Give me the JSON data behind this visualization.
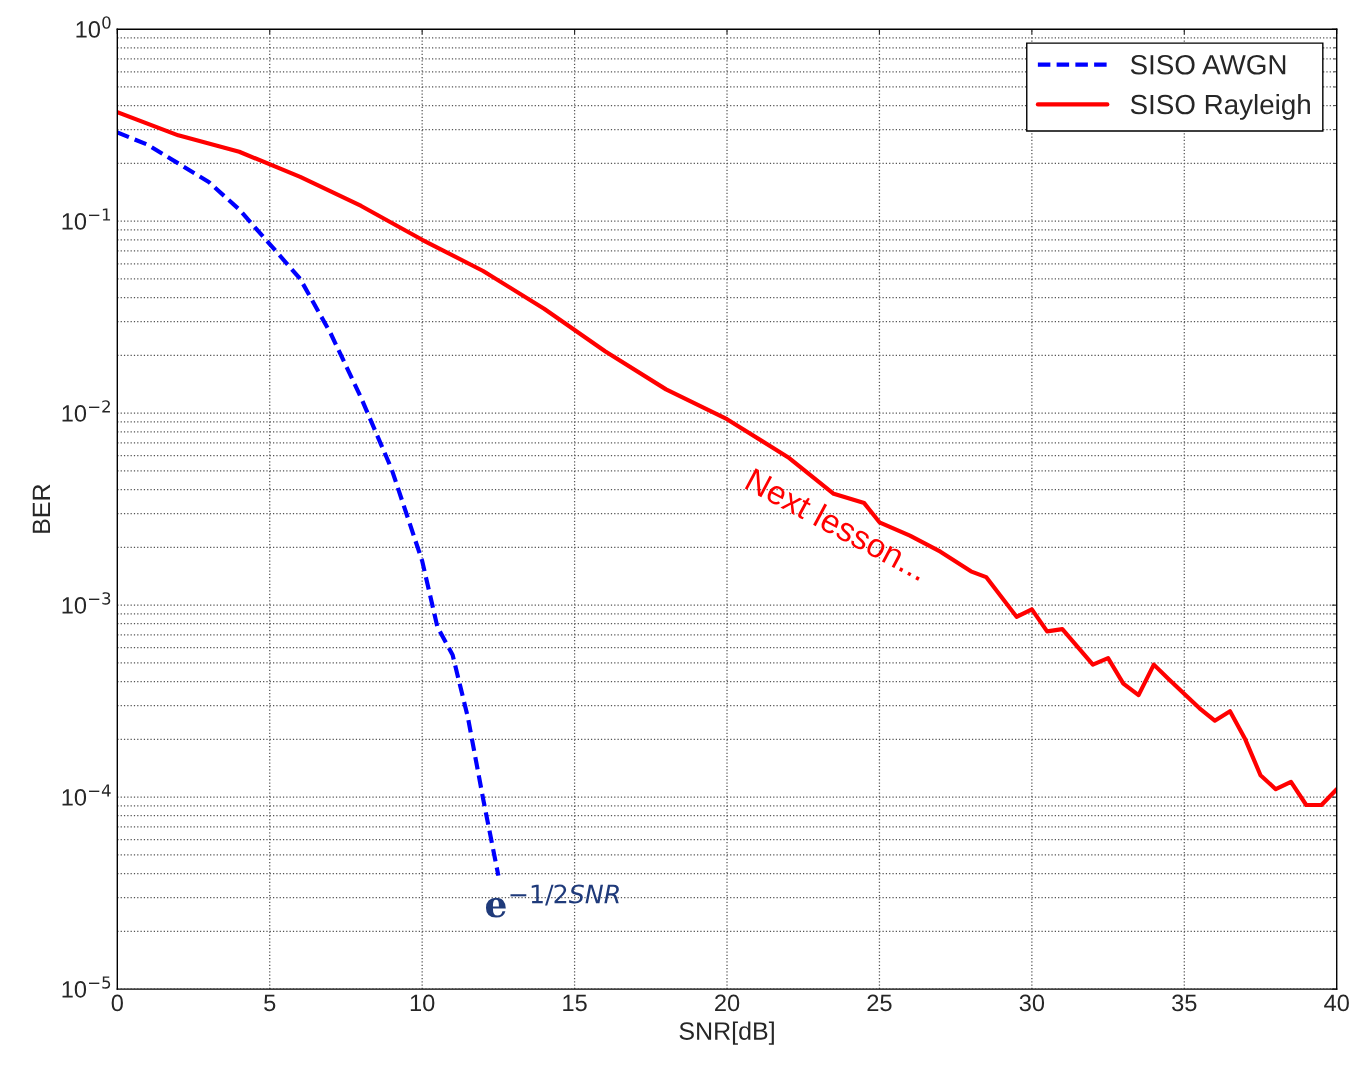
{
  "chart_data": {
    "type": "line",
    "xlabel": "SNR[dB]",
    "ylabel": "BER",
    "log": "y",
    "xlim": [
      0,
      40
    ],
    "xticks": [
      0,
      5,
      10,
      15,
      20,
      25,
      30,
      35,
      40
    ],
    "ylim": [
      1e-05,
      1
    ],
    "yticks": [
      {
        "value": 1e-05,
        "label": "10$^{−5}$"
      },
      {
        "value": 0.0001,
        "label": "10$^{−4}$"
      },
      {
        "value": 0.001,
        "label": "10$^{−3}$"
      },
      {
        "value": 0.01,
        "label": "10$^{−2}$"
      },
      {
        "value": 0.1,
        "label": "10$^{−1}$"
      },
      {
        "value": 1,
        "label": "10$^{0}$"
      }
    ],
    "grid": true,
    "legend": "top right",
    "series": [
      {
        "name": "SISO AWGN",
        "color": "#0000ff",
        "line_style": "dashed",
        "x": [
          0,
          1,
          2,
          3,
          4,
          5,
          6,
          7,
          8,
          9,
          10,
          10.5,
          11,
          11.5,
          12,
          12.5
        ],
        "values": [
          0.29,
          0.25,
          0.2,
          0.16,
          0.115,
          0.076,
          0.05,
          0.026,
          0.012,
          0.0051,
          0.0017,
          0.00077,
          0.00055,
          0.00026,
          9.8e-05,
          3.9e-05
        ]
      },
      {
        "name": "SISO Rayleigh",
        "color": "#ff0000",
        "line_style": "solid",
        "x": [
          0,
          2,
          4,
          6,
          8,
          10,
          12,
          14,
          16,
          18,
          20,
          22,
          23.5,
          24.5,
          25,
          26,
          27,
          28,
          28.5,
          29.5,
          30,
          30.5,
          31,
          32,
          32.5,
          33,
          33.5,
          34,
          34.5,
          35.5,
          36,
          36.5,
          37,
          37.5,
          38,
          38.5,
          39,
          39.5,
          40
        ],
        "values": [
          0.37,
          0.28,
          0.23,
          0.17,
          0.12,
          0.08,
          0.055,
          0.035,
          0.021,
          0.0133,
          0.0093,
          0.0059,
          0.0038,
          0.0034,
          0.0027,
          0.0023,
          0.0019,
          0.0015,
          0.0014,
          0.00087,
          0.00095,
          0.00073,
          0.00075,
          0.00049,
          0.00053,
          0.00039,
          0.00034,
          0.00049,
          0.00041,
          0.00029,
          0.00025,
          0.00028,
          0.0002,
          0.00013,
          0.00011,
          0.00012,
          9.1e-05,
          9.1e-05,
          0.00011
        ]
      }
    ],
    "annotations": [
      {
        "text": "e$^{−1/2SNR}$",
        "x": 12.5,
        "y": 3.9e-05
      },
      "Next lesson..."
    ]
  }
}
